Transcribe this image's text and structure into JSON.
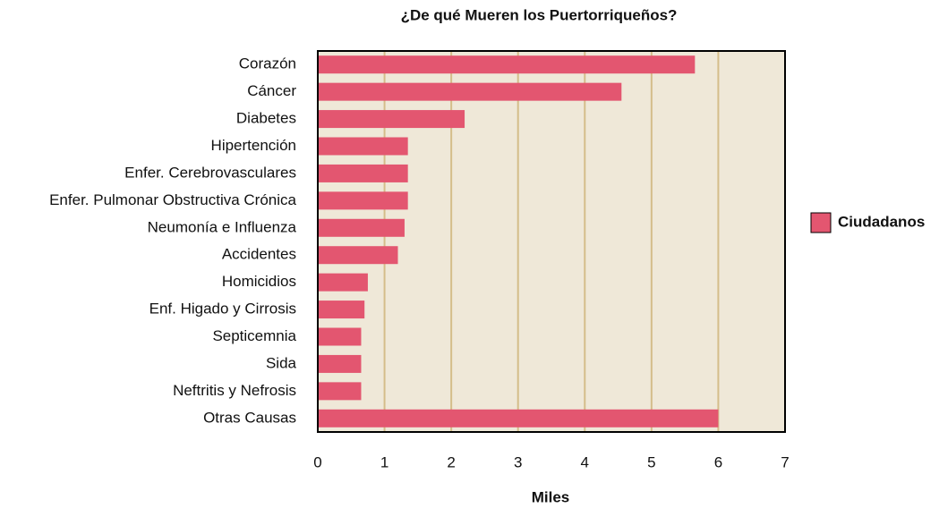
{
  "chart_data": {
    "type": "bar",
    "orientation": "horizontal",
    "title": "¿De qué Mueren los Puertorriqueños?",
    "x_label": "Miles",
    "categories": [
      "Corazón",
      "Cáncer",
      "Diabetes",
      "Hipertención",
      "Enfer. Cerebrovasculares",
      "Enfer. Pulmonar Obstructiva Crónica",
      "Neumonía e Influenza",
      "Accidentes",
      "Homicidios",
      "Enf. Higado y Cirrosis",
      "Septicemnia",
      "Sida",
      "Neftritis y Nefrosis",
      "Otras Causas"
    ],
    "series": [
      {
        "name": "Ciudadanos",
        "color": "#e35670",
        "values": [
          5.65,
          4.55,
          2.2,
          1.35,
          1.35,
          1.35,
          1.3,
          1.2,
          0.75,
          0.7,
          0.65,
          0.65,
          0.65,
          6.0
        ]
      }
    ],
    "xlim": [
      0,
      7
    ],
    "xticks": [
      0,
      1,
      2,
      3,
      4,
      5,
      6,
      7
    ],
    "grid": true,
    "legend": "right"
  }
}
